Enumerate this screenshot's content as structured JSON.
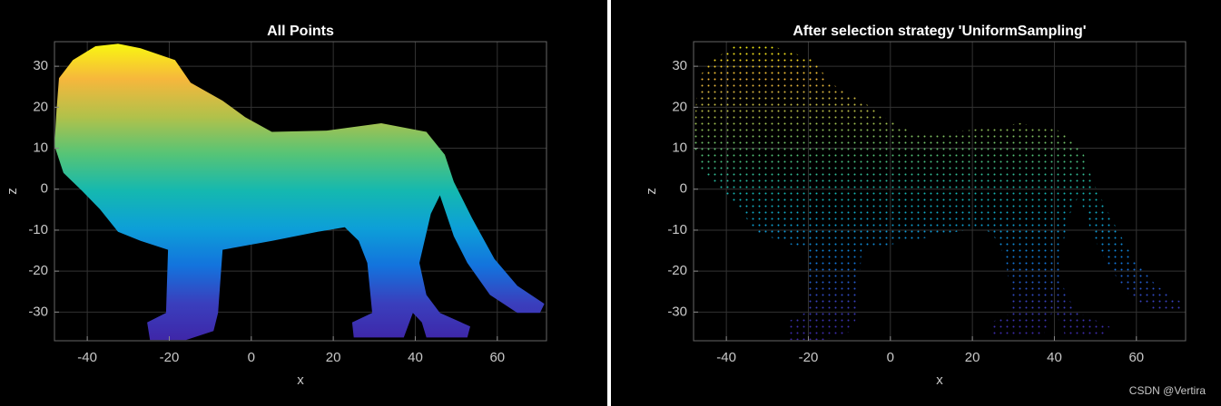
{
  "chart_data": [
    {
      "type": "polygon",
      "style": "dense",
      "title": "All Points",
      "xlabel": "x",
      "ylabel": "z",
      "xlim": [
        -48,
        72
      ],
      "ylim": [
        -37,
        36
      ],
      "xticks": [
        -40,
        -20,
        0,
        20,
        40,
        60
      ],
      "yticks": [
        -30,
        -20,
        -10,
        0,
        10,
        20,
        30
      ],
      "grid": true,
      "colormap": [
        "#3e26a8",
        "#3a3fbd",
        "#1373dd",
        "#0d9fd8",
        "#14b8b0",
        "#56c476",
        "#b2c14a",
        "#f6b73c",
        "#f9fb0e"
      ],
      "clim": [
        -37,
        36
      ],
      "x": [
        -32.5,
        -27,
        -18.6,
        -14.8,
        -7,
        -1.5,
        5,
        18.4,
        31.7,
        42.7,
        47.2,
        49.4,
        53.8,
        59.3,
        64.9,
        71.5,
        70.4,
        64.9,
        58.2,
        52.7,
        49.4,
        46,
        43.8,
        41,
        42.7,
        46,
        53.4,
        52.7,
        42.7,
        41.6,
        39.4,
        37.2,
        25,
        24.6,
        29.5,
        28.3,
        26.2,
        22.8,
        16.2,
        5.1,
        -7,
        -8.1,
        -9.2,
        -15.9,
        -24.7,
        -25.4,
        -20.8,
        -20.3,
        -27,
        -32.5,
        -36.9,
        -41.3,
        -45.8,
        -48,
        -47.5,
        -46.9,
        -43.5,
        -38
      ],
      "y": [
        35.5,
        34.4,
        31.5,
        26,
        21.6,
        17.6,
        14,
        14.3,
        16.1,
        14,
        8.4,
        1.8,
        -7,
        -17,
        -23.6,
        -28,
        -30.2,
        -30.2,
        -25.8,
        -18,
        -11.5,
        -1.5,
        -6,
        -18,
        -25.8,
        -30.2,
        -33.5,
        -36.2,
        -36.2,
        -32.5,
        -30.2,
        -36.2,
        -36.2,
        -32.5,
        -30.2,
        -18,
        -12.6,
        -9.3,
        -10.4,
        -12.6,
        -14.8,
        -30.2,
        -34.6,
        -36.8,
        -36.8,
        -32.5,
        -30.2,
        -14.8,
        -12.6,
        -10.4,
        -4.9,
        -0.4,
        4,
        10.6,
        19.4,
        27.1,
        31.5,
        34.9
      ]
    },
    {
      "type": "polygon",
      "style": "sampled",
      "title": "After selection strategy 'UniformSampling'",
      "xlabel": "x",
      "ylabel": "z",
      "xlim": [
        -48,
        72
      ],
      "ylim": [
        -37,
        36
      ],
      "xticks": [
        -40,
        -20,
        0,
        20,
        40,
        60
      ],
      "yticks": [
        -30,
        -20,
        -10,
        0,
        10,
        20,
        30
      ],
      "grid": true,
      "colormap": [
        "#3e26a8",
        "#3a3fbd",
        "#1373dd",
        "#0d9fd8",
        "#14b8b0",
        "#56c476",
        "#b2c14a",
        "#f6b73c",
        "#f9fb0e"
      ],
      "clim": [
        -37,
        36
      ],
      "x": [
        -32.5,
        -27,
        -18.6,
        -14.8,
        -7,
        -1.5,
        5,
        18.4,
        31.7,
        42.7,
        47.2,
        49.4,
        53.8,
        59.3,
        64.9,
        71.5,
        70.4,
        64.9,
        58.2,
        52.7,
        49.4,
        46,
        43.8,
        41,
        42.7,
        46,
        53.4,
        52.7,
        42.7,
        41.6,
        39.4,
        37.2,
        25,
        24.6,
        29.5,
        28.3,
        26.2,
        22.8,
        16.2,
        5.1,
        -7,
        -8.1,
        -9.2,
        -15.9,
        -24.7,
        -25.4,
        -20.8,
        -20.3,
        -27,
        -32.5,
        -36.9,
        -41.3,
        -45.8,
        -48,
        -47.5,
        -46.9,
        -43.5,
        -38
      ],
      "y": [
        35.5,
        34.4,
        31.5,
        26,
        21.6,
        17.6,
        14,
        14.3,
        16.1,
        14,
        8.4,
        1.8,
        -7,
        -17,
        -23.6,
        -28,
        -30.2,
        -30.2,
        -25.8,
        -18,
        -11.5,
        -1.5,
        -6,
        -18,
        -25.8,
        -30.2,
        -33.5,
        -36.2,
        -36.2,
        -32.5,
        -30.2,
        -36.2,
        -36.2,
        -32.5,
        -30.2,
        -18,
        -12.6,
        -9.3,
        -10.4,
        -12.6,
        -14.8,
        -30.2,
        -34.6,
        -36.8,
        -36.8,
        -32.5,
        -30.2,
        -14.8,
        -12.6,
        -10.4,
        -4.9,
        -0.4,
        4,
        10.6,
        19.4,
        27.1,
        31.5,
        34.9
      ]
    }
  ],
  "watermark": "CSDN @Vertira"
}
